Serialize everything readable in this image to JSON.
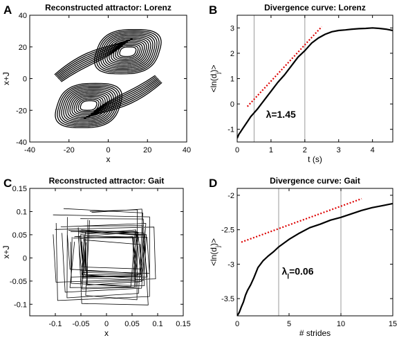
{
  "chart_data": [
    {
      "panel": "A",
      "type": "line",
      "title": "Reconstructed attractor: Lorenz",
      "xlabel": "x",
      "ylabel": "x+J",
      "xlim": [
        -40,
        40
      ],
      "ylim": [
        -40,
        40
      ],
      "xticks": [
        "-40",
        "-20",
        "0",
        "20",
        "40"
      ],
      "yticks": [
        "40",
        "20",
        "0",
        "-20",
        "-40"
      ],
      "grid": false,
      "series": [
        {
          "color": "#000000",
          "description_lobes": [
            {
              "center": [
                -10,
                -17
              ],
              "radius_x": [
                4,
                16
              ],
              "radius_y": [
                3,
                14
              ]
            },
            {
              "center": [
                10,
                17
              ],
              "radius_x": [
                4,
                16
              ],
              "radius_y": [
                3,
                14
              ]
            }
          ]
        }
      ]
    },
    {
      "panel": "B",
      "type": "line",
      "title": "Divergence curve: Lorenz",
      "xlabel": "t (s)",
      "ylabel": "<ln(d_j)>",
      "xlim": [
        0,
        4.6
      ],
      "ylim": [
        -1.5,
        3.5
      ],
      "xticks": [
        "0",
        "1",
        "2",
        "3",
        "4"
      ],
      "yticks": [
        "3",
        "2",
        "1",
        "0",
        "-1"
      ],
      "vlines": [
        0.5,
        2.0
      ],
      "annotation": {
        "text": "λ=1.45",
        "x": 0.85,
        "y": -0.55
      },
      "series": [
        {
          "name": "divergence",
          "color": "#000000",
          "x": [
            0,
            0.05,
            0.1,
            0.15,
            0.2,
            0.3,
            0.4,
            0.5,
            0.6,
            0.8,
            1.0,
            1.2,
            1.4,
            1.6,
            1.8,
            2.0,
            2.2,
            2.4,
            2.6,
            2.8,
            3.0,
            3.2,
            3.4,
            3.6,
            3.8,
            4.0,
            4.2,
            4.4,
            4.6
          ],
          "y": [
            -1.35,
            -1.2,
            -1.1,
            -1.0,
            -0.9,
            -0.7,
            -0.5,
            -0.35,
            -0.2,
            0.15,
            0.5,
            0.85,
            1.15,
            1.5,
            1.85,
            2.1,
            2.4,
            2.6,
            2.75,
            2.85,
            2.9,
            2.92,
            2.95,
            2.97,
            2.98,
            3.0,
            2.98,
            2.95,
            2.9
          ]
        },
        {
          "name": "slope fit",
          "color": "#dd0000",
          "style": "dotted",
          "x": [
            0.3,
            2.5
          ],
          "y": [
            -0.1,
            3.05
          ]
        }
      ]
    },
    {
      "panel": "C",
      "type": "line",
      "title": "Reconstructed attractor: Gait",
      "xlabel": "x",
      "ylabel": "x+J",
      "xlim": [
        -0.15,
        0.15
      ],
      "ylim": [
        -0.125,
        0.15
      ],
      "xticks": [
        "-0.1",
        "-0.05",
        "0",
        "0.05",
        "0.1",
        "0.15"
      ],
      "yticks": [
        "0.15",
        "0.1",
        "0.05",
        "0",
        "-0.05",
        "-0.1"
      ],
      "grid": false,
      "series": [
        {
          "color": "#000000",
          "description_box": {
            "center": [
              0.005,
              0.005
            ],
            "half_width": [
              0.05,
              0.11
            ],
            "half_height": [
              0.04,
              0.11
            ]
          }
        }
      ]
    },
    {
      "panel": "D",
      "type": "line",
      "title": "Divergence curve: Gait",
      "xlabel": "# strides",
      "ylabel": "<ln(d_j)>",
      "xlim": [
        0,
        15
      ],
      "ylim": [
        -3.75,
        -1.9
      ],
      "xticks": [
        "0",
        "5",
        "10",
        "15"
      ],
      "yticks": [
        "-2",
        "-2.5",
        "-3",
        "-3.5"
      ],
      "vlines": [
        4,
        10
      ],
      "annotation": {
        "text": "λ",
        "sub": "l",
        "suffix": "=0.06",
        "x": 4.3,
        "y": -3.15
      },
      "series": [
        {
          "name": "divergence",
          "color": "#000000",
          "x": [
            0,
            0.2,
            0.4,
            0.6,
            0.8,
            1.0,
            1.3,
            1.6,
            2.0,
            2.5,
            3.0,
            3.5,
            4.0,
            5.0,
            6.0,
            7.0,
            8.0,
            9.0,
            10.0,
            11.0,
            12.0,
            13.0,
            14.0,
            15.0
          ],
          "y": [
            -3.75,
            -3.7,
            -3.62,
            -3.55,
            -3.45,
            -3.38,
            -3.3,
            -3.2,
            -3.05,
            -2.95,
            -2.88,
            -2.82,
            -2.75,
            -2.64,
            -2.55,
            -2.47,
            -2.42,
            -2.36,
            -2.32,
            -2.27,
            -2.22,
            -2.18,
            -2.15,
            -2.12
          ]
        },
        {
          "name": "slope fit",
          "color": "#dd0000",
          "style": "dotted",
          "x": [
            0.4,
            12.0
          ],
          "y": [
            -2.68,
            -2.05
          ]
        }
      ]
    }
  ]
}
